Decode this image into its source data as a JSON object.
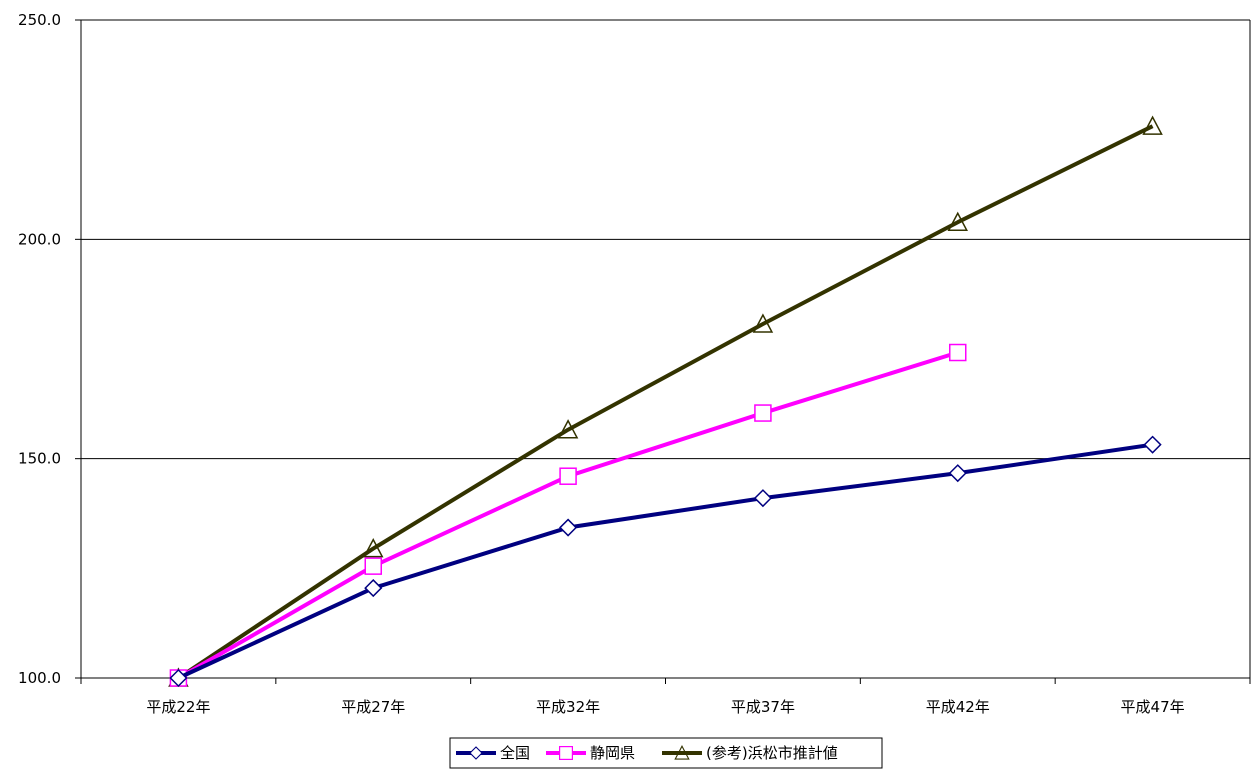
{
  "chart_data": {
    "type": "line",
    "title": "",
    "xlabel": "",
    "ylabel": "",
    "categories": [
      "平成22年",
      "平成27年",
      "平成32年",
      "平成37年",
      "平成42年",
      "平成47年"
    ],
    "ylim": [
      100,
      250
    ],
    "yticks": [
      100,
      150,
      200,
      250
    ],
    "ytick_labels": [
      "100.0",
      "150.0",
      "200.0",
      "250.0"
    ],
    "grid": "horizontal",
    "legend_position": "bottom",
    "series": [
      {
        "name": "全国",
        "values": [
          100.0,
          120.5,
          134.3,
          141.0,
          146.7,
          153.2
        ],
        "color": "#000080",
        "marker": "diamond"
      },
      {
        "name": "静岡県",
        "values": [
          100.0,
          125.5,
          146.0,
          160.4,
          174.2,
          null
        ],
        "color": "#ff00ff",
        "marker": "square"
      },
      {
        "name": "(参考)浜松市推計値",
        "values": [
          100.0,
          129.5,
          156.6,
          180.7,
          203.9,
          225.8
        ],
        "color": "#333300",
        "marker": "triangle"
      }
    ]
  }
}
